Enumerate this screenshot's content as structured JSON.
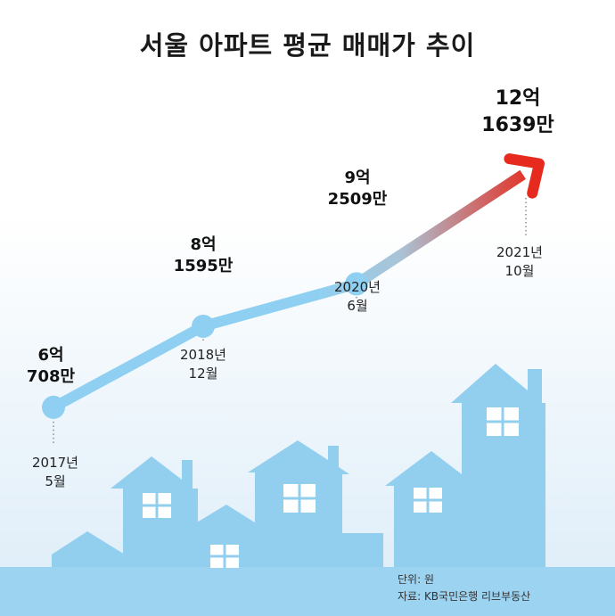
{
  "title": "서울 아파트 평균 매매가 추이",
  "footer": {
    "unit": "단위: 원",
    "source": "자료: KB국민은행 리브부동산"
  },
  "colors": {
    "line_start": "#8fd0f2",
    "line_mid": "#a9c4d6",
    "arrow_end": "#e62b1e",
    "sky_top": "#ffffff",
    "sky_bottom": "#dcecf8",
    "house": "#92cfef",
    "ground": "#9bd3f1",
    "window": "#ffffff"
  },
  "chart_data": {
    "type": "line",
    "title": "서울 아파트 평균 매매가 추이",
    "unit": "원",
    "points": [
      {
        "date_line1": "2017년",
        "date_line2": "5월",
        "value_line1": "6억",
        "value_line2": "708만",
        "value": 607080000
      },
      {
        "date_line1": "2018년",
        "date_line2": "12월",
        "value_line1": "8억",
        "value_line2": "1595만",
        "value": 815950000
      },
      {
        "date_line1": "2020년",
        "date_line2": "6월",
        "value_line1": "9억",
        "value_line2": "2509만",
        "value": 925090000
      },
      {
        "date_line1": "2021년",
        "date_line2": "10월",
        "value_line1": "12억",
        "value_line2": "1639만",
        "value": 1216390000
      }
    ]
  }
}
